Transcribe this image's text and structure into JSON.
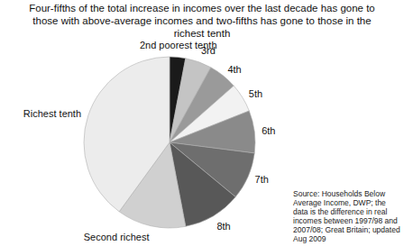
{
  "chart_data": {
    "type": "pie",
    "title": "Four-fifths of the total increase in incomes over the last decade has gone to those with above-average incomes and two-fifths has gone to those in the richest tenth",
    "categories": [
      "2nd poorest tenth",
      "3rd",
      "4th",
      "5th",
      "6th",
      "7th",
      "8th",
      "Second richest",
      "Richest tenth"
    ],
    "values": [
      3,
      5,
      5.5,
      5.5,
      8,
      9,
      11,
      13,
      40
    ],
    "colors": [
      "#1a1a1a",
      "#c4c4c4",
      "#9a9a9a",
      "#f2f2f2",
      "#8a8a8a",
      "#6e6e6e",
      "#585858",
      "#d0d0d0",
      "#ececec"
    ],
    "source": "Source: Households Below Average Income, DWP; the data is the difference in real incomes between 1997/98 and 2007/08; Great Britain; updated Aug 2009"
  }
}
